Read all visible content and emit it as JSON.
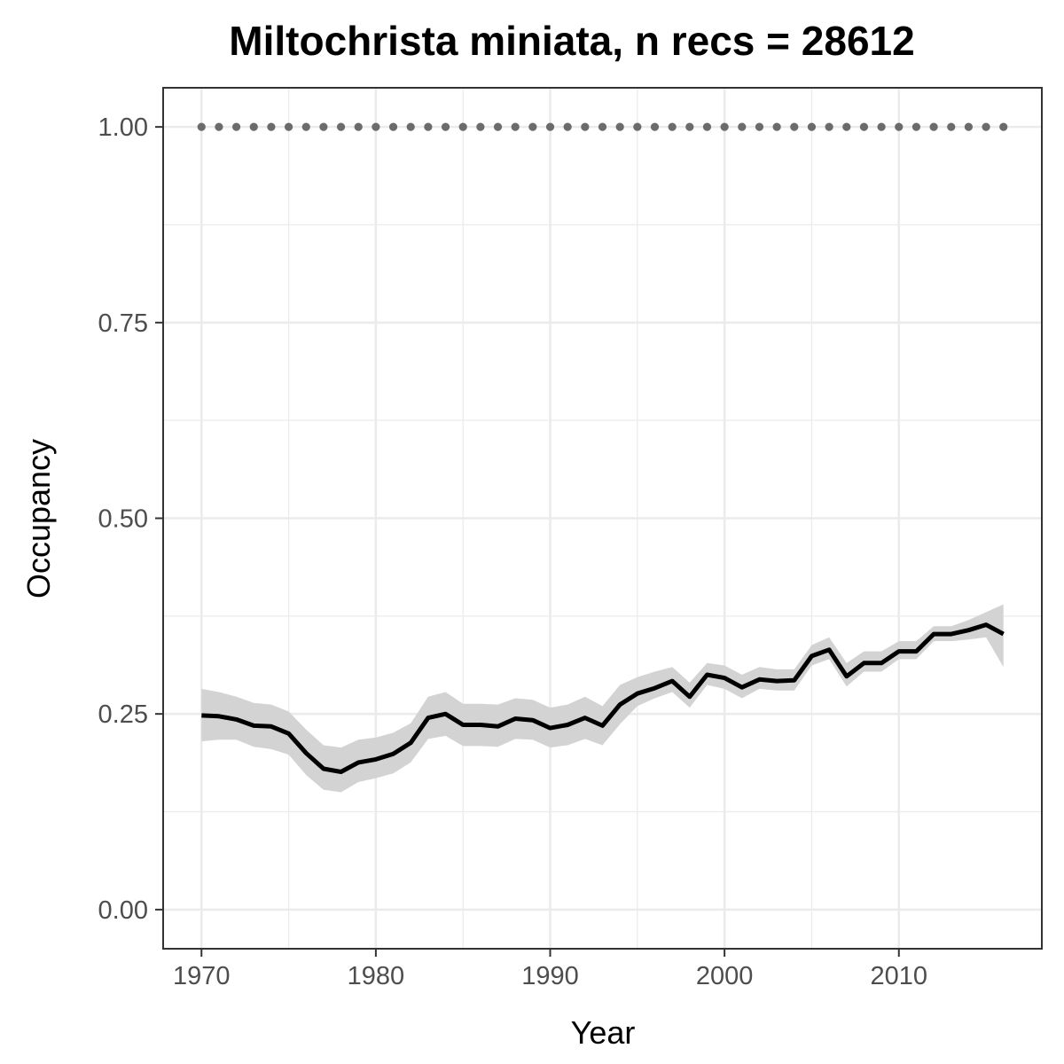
{
  "chart_data": {
    "type": "line",
    "title": "Miltochrista miniata, n recs = 28612",
    "xlabel": "Year",
    "ylabel": "Occupancy",
    "xlim": [
      1967.8,
      2018.2
    ],
    "ylim": [
      -0.05,
      1.05
    ],
    "x_ticks": [
      1970,
      1980,
      1990,
      2000,
      2010
    ],
    "x_tick_labels": [
      "1970",
      "1980",
      "1990",
      "2000",
      "2010"
    ],
    "y_ticks": [
      0,
      0.25,
      0.5,
      0.75,
      1.0
    ],
    "y_tick_labels": [
      "0.00",
      "0.25",
      "0.50",
      "0.75",
      "1.00"
    ],
    "grid": true,
    "legend": "none",
    "colors": {
      "line": "#000000",
      "band": "#d3d3d3",
      "dots": "#6b6b6b",
      "grid": "#ebebeb",
      "border": "#333333"
    },
    "series": [
      {
        "type": "line",
        "x": [
          1970,
          1971,
          1972,
          1973,
          1974,
          1975,
          1976,
          1977,
          1978,
          1979,
          1980,
          1981,
          1982,
          1983,
          1984,
          1985,
          1986,
          1987,
          1988,
          1989,
          1990,
          1991,
          1992,
          1993,
          1994,
          1995,
          1996,
          1997,
          1998,
          1999,
          2000,
          2001,
          2002,
          2003,
          2004,
          2005,
          2006,
          2007,
          2008,
          2009,
          2010,
          2011,
          2012,
          2013,
          2014,
          2015,
          2016
        ],
        "y": [
          0.248,
          0.247,
          0.243,
          0.235,
          0.234,
          0.225,
          0.2,
          0.18,
          0.176,
          0.188,
          0.192,
          0.199,
          0.213,
          0.245,
          0.25,
          0.236,
          0.236,
          0.234,
          0.244,
          0.242,
          0.232,
          0.236,
          0.245,
          0.235,
          0.262,
          0.276,
          0.283,
          0.292,
          0.272,
          0.3,
          0.296,
          0.284,
          0.294,
          0.292,
          0.293,
          0.324,
          0.332,
          0.298,
          0.315,
          0.315,
          0.33,
          0.33,
          0.352,
          0.352,
          0.357,
          0.364,
          0.352
        ],
        "lower": [
          0.215,
          0.217,
          0.217,
          0.208,
          0.205,
          0.198,
          0.172,
          0.153,
          0.15,
          0.163,
          0.168,
          0.174,
          0.188,
          0.218,
          0.222,
          0.209,
          0.209,
          0.208,
          0.218,
          0.217,
          0.207,
          0.21,
          0.218,
          0.21,
          0.237,
          0.26,
          0.27,
          0.278,
          0.258,
          0.287,
          0.282,
          0.27,
          0.282,
          0.28,
          0.28,
          0.312,
          0.32,
          0.285,
          0.304,
          0.304,
          0.32,
          0.32,
          0.343,
          0.343,
          0.345,
          0.348,
          0.31
        ],
        "upper": [
          0.282,
          0.278,
          0.272,
          0.264,
          0.262,
          0.253,
          0.23,
          0.21,
          0.207,
          0.217,
          0.22,
          0.226,
          0.238,
          0.272,
          0.278,
          0.263,
          0.263,
          0.262,
          0.27,
          0.268,
          0.258,
          0.262,
          0.272,
          0.26,
          0.287,
          0.297,
          0.304,
          0.31,
          0.29,
          0.315,
          0.312,
          0.3,
          0.31,
          0.307,
          0.307,
          0.338,
          0.348,
          0.315,
          0.33,
          0.33,
          0.343,
          0.343,
          0.362,
          0.362,
          0.37,
          0.38,
          0.39
        ]
      },
      {
        "type": "points",
        "x": [
          1970,
          1971,
          1972,
          1973,
          1974,
          1975,
          1976,
          1977,
          1978,
          1979,
          1980,
          1981,
          1982,
          1983,
          1984,
          1985,
          1986,
          1987,
          1988,
          1989,
          1990,
          1991,
          1992,
          1993,
          1994,
          1995,
          1996,
          1997,
          1998,
          1999,
          2000,
          2001,
          2002,
          2003,
          2004,
          2005,
          2006,
          2007,
          2008,
          2009,
          2010,
          2011,
          2012,
          2013,
          2014,
          2015,
          2016
        ],
        "y": [
          1,
          1,
          1,
          1,
          1,
          1,
          1,
          1,
          1,
          1,
          1,
          1,
          1,
          1,
          1,
          1,
          1,
          1,
          1,
          1,
          1,
          1,
          1,
          1,
          1,
          1,
          1,
          1,
          1,
          1,
          1,
          1,
          1,
          1,
          1,
          1,
          1,
          1,
          1,
          1,
          1,
          1,
          1,
          1,
          1,
          1,
          1
        ]
      }
    ]
  }
}
